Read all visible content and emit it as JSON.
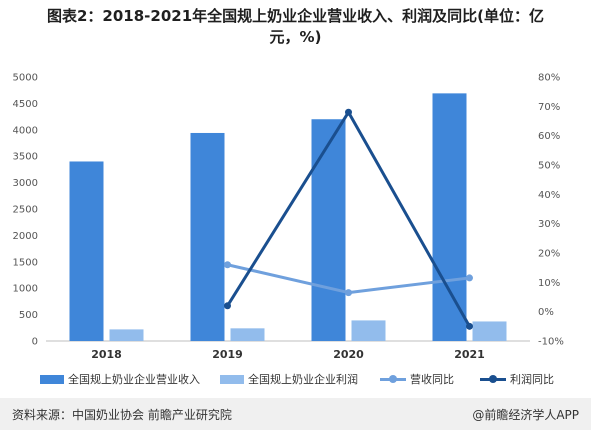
{
  "title_lines": [
    "图表2：2018-2021年全国规上奶业企业营业收入、利润及同比(单位：亿",
    "元，%)"
  ],
  "chart_data": {
    "type": "bar",
    "categories": [
      "2018",
      "2019",
      "2020",
      "2021"
    ],
    "ylim": [
      0,
      5000
    ],
    "y2lim": [
      -10,
      80
    ],
    "y_ticks": [
      "0",
      "500",
      "1000",
      "1500",
      "2000",
      "2500",
      "3000",
      "3500",
      "4000",
      "4500",
      "5000"
    ],
    "y2_ticks": [
      "-10%",
      "0%",
      "10%",
      "20%",
      "30%",
      "40%",
      "50%",
      "60%",
      "70%",
      "80%"
    ],
    "series": [
      {
        "name": "全国规上奶业企业营业收入",
        "type": "bar",
        "axis": "left",
        "color": "#3f86d9",
        "values": [
          3400,
          3940,
          4200,
          4690
        ]
      },
      {
        "name": "全国规上奶业企业利润",
        "type": "bar",
        "axis": "left",
        "color": "#92bcec",
        "values": [
          220,
          240,
          390,
          370
        ]
      },
      {
        "name": "营收同比",
        "type": "line",
        "axis": "right",
        "color": "#6fa0dd",
        "values": [
          null,
          16,
          6.5,
          11.5
        ]
      },
      {
        "name": "利润同比",
        "type": "line",
        "axis": "right",
        "color": "#1a4f8f",
        "values": [
          null,
          2,
          68,
          -5
        ]
      }
    ]
  },
  "footer": {
    "source": "资料来源：中国奶业协会 前瞻产业研究院",
    "brand": "@前瞻经济学人APP"
  }
}
